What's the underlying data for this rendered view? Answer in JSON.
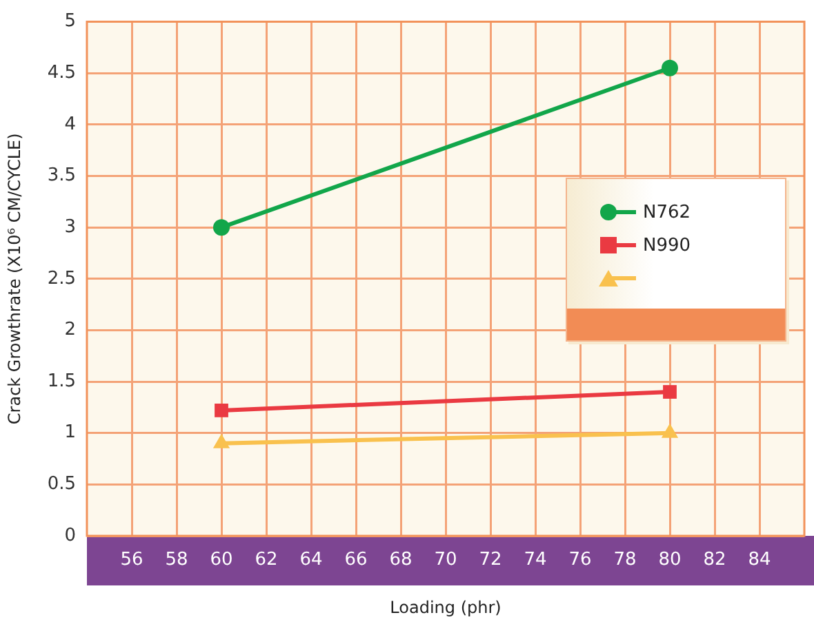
{
  "chart_data": {
    "type": "line",
    "xlabel": "Loading (phr)",
    "ylabel": "Crack Growthrate (X10⁶ CM/CYCLE)",
    "x": [
      60,
      80
    ],
    "series": [
      {
        "name": "N762",
        "color": "#12a64a",
        "values": [
          3.0,
          4.55
        ],
        "marker": "circle"
      },
      {
        "name": "N990",
        "color": "#ea3a42",
        "values": [
          1.22,
          1.4
        ],
        "marker": "square"
      },
      {
        "color": "#f9c14e",
        "values": [
          0.9,
          1.0
        ],
        "marker": "triangle"
      }
    ],
    "xlim": [
      54,
      86
    ],
    "xticks": [
      56,
      58,
      60,
      62,
      64,
      66,
      68,
      70,
      72,
      74,
      76,
      78,
      80,
      82,
      84
    ],
    "ylim": [
      0,
      5
    ],
    "yticks": [
      0,
      0.5,
      1,
      1.5,
      2,
      2.5,
      3,
      3.5,
      4,
      4.5,
      5
    ],
    "grid": true,
    "legend": "right",
    "line_style": "solid"
  }
}
